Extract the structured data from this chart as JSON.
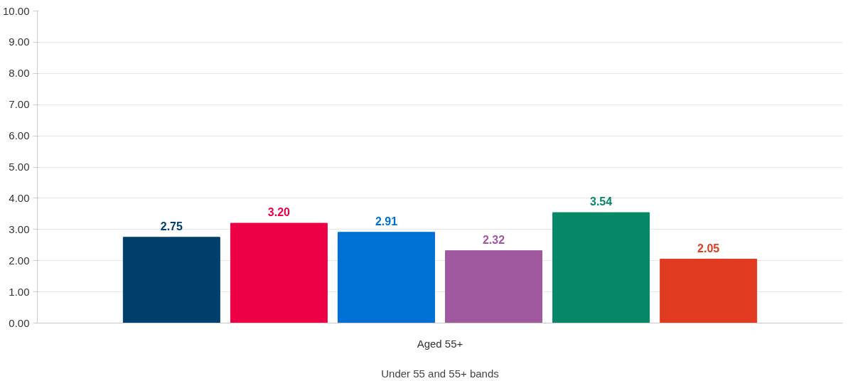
{
  "chart_data": {
    "type": "bar",
    "xlabel": "Under 55 and 55+ bands",
    "categories": [
      "Aged 55+"
    ],
    "series": [
      {
        "color": "#003f6b",
        "values": [
          2.75
        ],
        "value_labels": [
          "2.75"
        ]
      },
      {
        "color": "#ee0046",
        "values": [
          3.2
        ],
        "value_labels": [
          "3.20"
        ]
      },
      {
        "color": "#0070d4",
        "values": [
          2.91
        ],
        "value_labels": [
          "2.91"
        ]
      },
      {
        "color": "#a0589e",
        "values": [
          2.32
        ],
        "value_labels": [
          "2.32"
        ]
      },
      {
        "color": "#068766",
        "values": [
          3.54
        ],
        "value_labels": [
          "3.54"
        ]
      },
      {
        "color": "#e03a20",
        "values": [
          2.05
        ],
        "value_labels": [
          "2.05"
        ]
      }
    ],
    "ylim": [
      0,
      10
    ],
    "yticks": [
      {
        "value": 0,
        "label": "0.00"
      },
      {
        "value": 1,
        "label": "1.00"
      },
      {
        "value": 2,
        "label": "2.00"
      },
      {
        "value": 3,
        "label": "3.00"
      },
      {
        "value": 4,
        "label": "4.00"
      },
      {
        "value": 5,
        "label": "5.00"
      },
      {
        "value": 6,
        "label": "6.00"
      },
      {
        "value": 7,
        "label": "7.00"
      },
      {
        "value": 8,
        "label": "8.00"
      },
      {
        "value": 9,
        "label": "9.00"
      },
      {
        "value": 10,
        "label": "10.00"
      }
    ],
    "grid": "y"
  }
}
